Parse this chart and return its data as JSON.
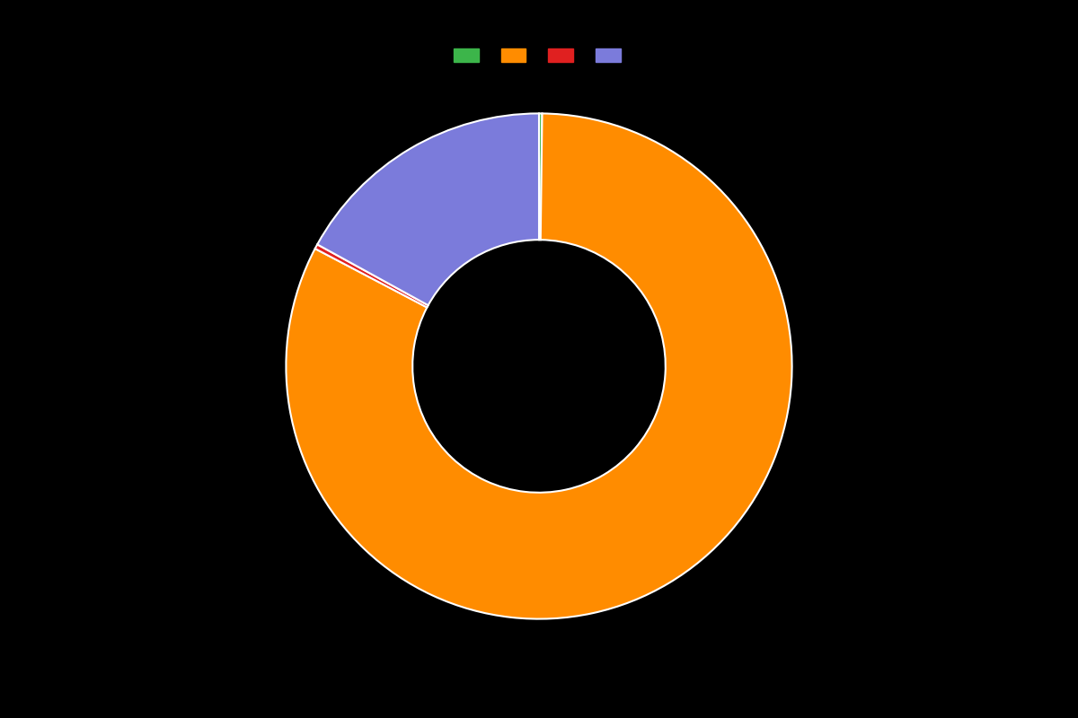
{
  "slices": [
    0.2,
    82.5,
    0.3,
    17.0
  ],
  "colors": [
    "#3cb54a",
    "#ff8c00",
    "#e02020",
    "#7b7bdb"
  ],
  "background_color": "#000000",
  "wedge_edgecolor": "#ffffff",
  "wedge_linewidth": 1.5,
  "donut_hole": 0.5,
  "legend_labels": [
    "",
    "",
    "",
    ""
  ],
  "startangle": 90,
  "figsize": [
    12,
    8
  ],
  "dpi": 100
}
